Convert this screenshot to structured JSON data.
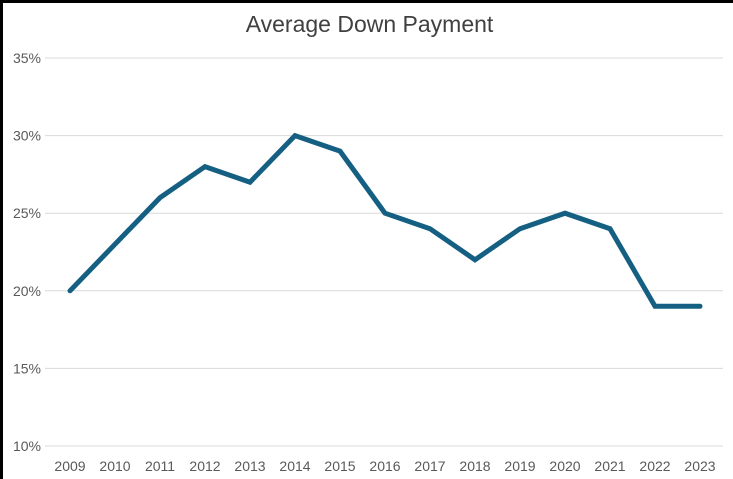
{
  "chart_data": {
    "type": "line",
    "title": "Average Down Payment",
    "categories": [
      "2009",
      "2010",
      "2011",
      "2012",
      "2013",
      "2014",
      "2015",
      "2016",
      "2017",
      "2018",
      "2019",
      "2020",
      "2021",
      "2022",
      "2023"
    ],
    "values": [
      20,
      23,
      26,
      28,
      27,
      30,
      29,
      25,
      24,
      22,
      24,
      25,
      24,
      19,
      19
    ],
    "yticks": [
      "35%",
      "30%",
      "25%",
      "20%",
      "15%",
      "10%"
    ],
    "ytick_values": [
      35,
      30,
      25,
      20,
      15,
      10
    ],
    "ylim": [
      10,
      35
    ],
    "xlabel": "",
    "ylabel": "",
    "grid": true,
    "legend": "none",
    "colors": {
      "line": "#156082",
      "gridline": "#d9d9d9",
      "tick_label": "#595959",
      "title": "#404040",
      "background": "#ffffff",
      "frame_border": "#000000"
    }
  }
}
